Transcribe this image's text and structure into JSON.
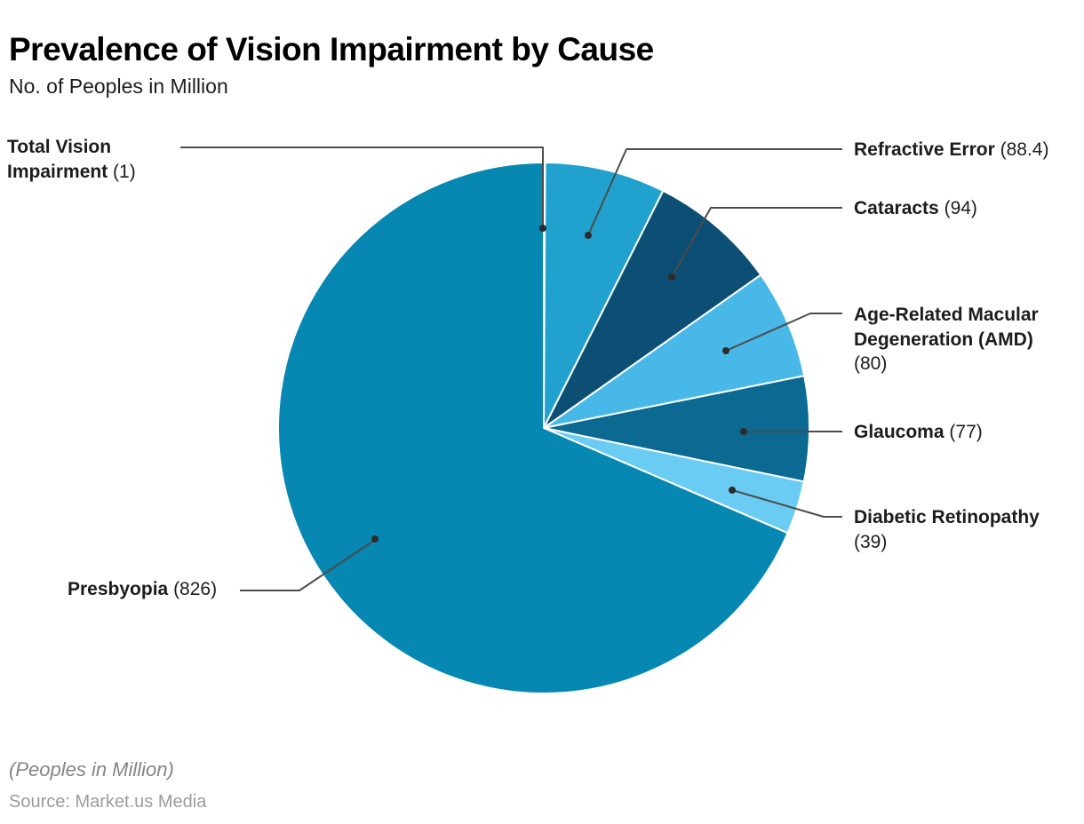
{
  "header": {
    "title": "Prevalence of Vision Impairment by Cause",
    "subtitle": "No. of Peoples in Million"
  },
  "chart_data": {
    "type": "pie",
    "title": "Prevalence of Vision Impairment by Cause",
    "value_unit": "No. of Peoples in Million",
    "total": 1205.4,
    "start_angle_deg": 0,
    "direction": "clockwise",
    "slice_border_color": "#ffffff",
    "leader_line_color": "#4c4c4c",
    "slices": [
      {
        "label": "Total Vision Impairment",
        "value": 1,
        "value_display": "(1)",
        "color": "#0688b2"
      },
      {
        "label": "Refractive Error",
        "value": 88.4,
        "value_display": "(88.4)",
        "color": "#21a1ce"
      },
      {
        "label": "Cataracts",
        "value": 94,
        "value_display": "(94)",
        "color": "#0d4e74"
      },
      {
        "label": "Age-Related Macular Degeneration (AMD)",
        "value": 80,
        "value_display": "(80)",
        "color": "#47b8e8"
      },
      {
        "label": "Glaucoma",
        "value": 77,
        "value_display": "(77)",
        "color": "#0b6992"
      },
      {
        "label": "Diabetic Retinopathy",
        "value": 39,
        "value_display": "(39)",
        "color": "#6bccf3"
      },
      {
        "label": "Presbyopia",
        "value": 826,
        "value_display": "(826)",
        "color": "#0688b2"
      }
    ]
  },
  "footer": {
    "note": "(Peoples in Million)",
    "source": "Source: Market.us Media"
  }
}
